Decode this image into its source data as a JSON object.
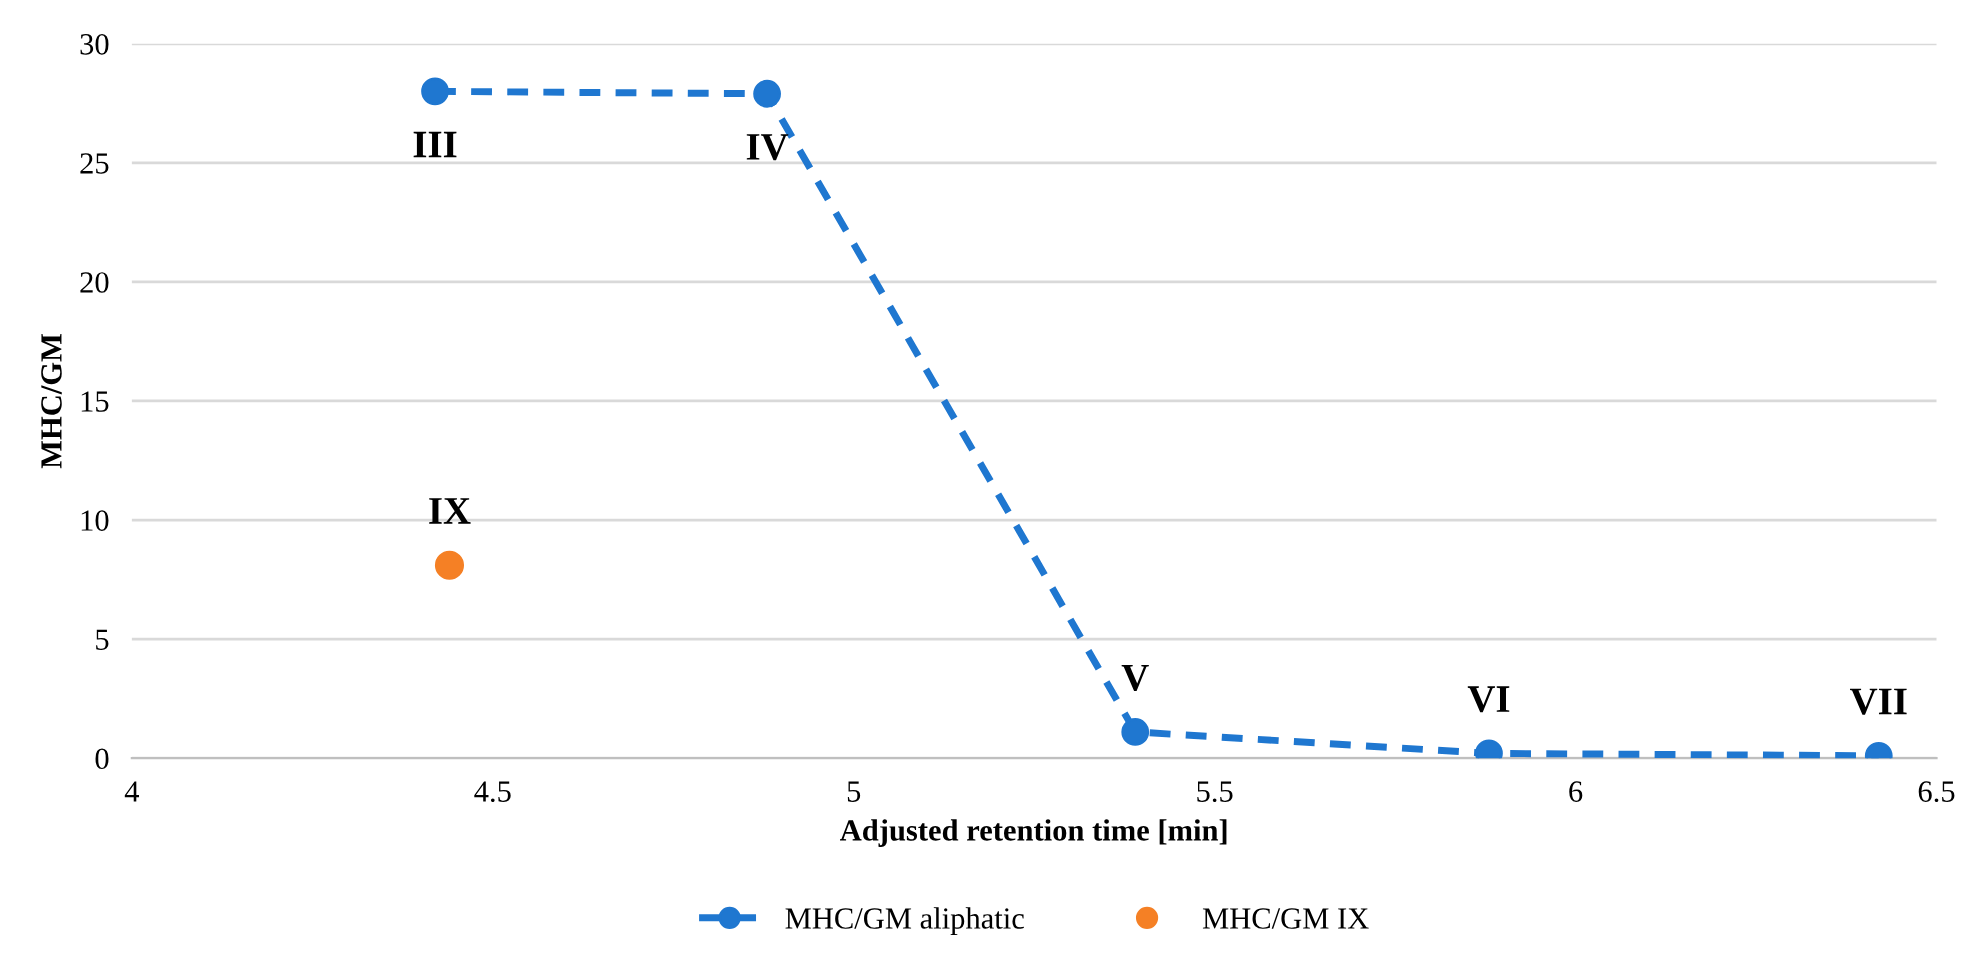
{
  "chart_data": {
    "type": "line",
    "xlabel": "Adjusted retention time [min]",
    "ylabel": "MHC/GM",
    "xlim": [
      4,
      6.5
    ],
    "xticks": [
      4,
      4.5,
      5,
      5.5,
      6,
      6.5
    ],
    "ylim": [
      0,
      30
    ],
    "yticks": [
      0,
      5,
      10,
      15,
      20,
      25,
      30
    ],
    "grid": "y",
    "legend": "bottom",
    "series": [
      {
        "name": "MHC/GM aliphatic",
        "color": "#1f77d0",
        "marker": "circle",
        "line_style": "dashed",
        "x": [
          4.42,
          4.88,
          5.39,
          5.88,
          6.42
        ],
        "values": [
          28,
          27.9,
          1.1,
          0.2,
          0.1
        ]
      },
      {
        "name": "MHC/GM IX",
        "type": "scatter",
        "color": "#f58025",
        "marker": "circle",
        "x": [
          4.44
        ],
        "values": [
          8.1
        ]
      }
    ],
    "annotations": [
      {
        "text": "III",
        "x": 4.42,
        "y": 28
      },
      {
        "text": "IV",
        "x": 4.88,
        "y": 27.9
      },
      {
        "text": "V",
        "x": 5.39,
        "y": 1.1
      },
      {
        "text": "VI",
        "x": 5.88,
        "y": 0.2
      },
      {
        "text": "VII",
        "x": 6.42,
        "y": 0.1
      },
      {
        "text": "IX",
        "x": 4.44,
        "y": 8.1
      }
    ]
  }
}
